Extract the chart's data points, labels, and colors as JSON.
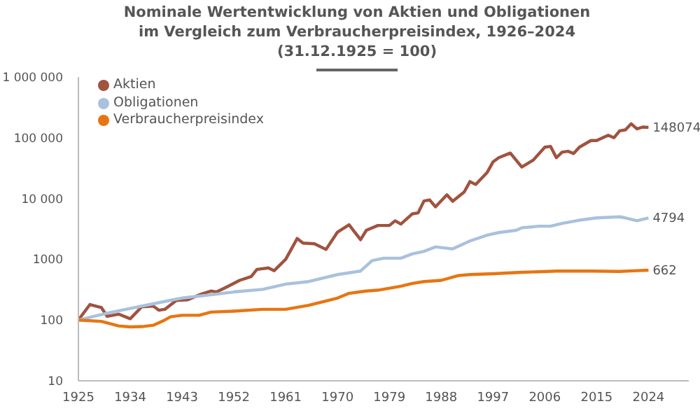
{
  "chart_data": {
    "type": "line",
    "title": "Nominale Wertentwicklung von Aktien und Obligationen im Vergleich zum Verbraucherpreisindex, 1926–2024 (31.12.1925 = 100)",
    "log": "y",
    "grid": false,
    "legend": "top left",
    "marker": "none",
    "line_style": "solid",
    "xlim": [
      1925,
      2031
    ],
    "xticks": [
      1925,
      1934,
      1943,
      1952,
      1961,
      1970,
      1979,
      1988,
      1997,
      2006,
      2015,
      2024
    ],
    "ylim": [
      10,
      1000000
    ],
    "yticks": [
      10,
      100,
      1000,
      {
        "value": 10000,
        "label": "10 000"
      },
      {
        "value": 100000,
        "label": "100 000"
      },
      {
        "value": 1000000,
        "label": "1 000 000"
      }
    ],
    "series": [
      {
        "name": "Aktien",
        "color": "#a0533f",
        "x": [
          1925,
          1927,
          1929,
          1930,
          1932,
          1934,
          1936,
          1938,
          1939,
          1940,
          1942,
          1944,
          1946,
          1948,
          1949,
          1951,
          1953,
          1955,
          1956,
          1958,
          1959,
          1961,
          1963,
          1964,
          1966,
          1968,
          1970,
          1972,
          1974,
          1975,
          1977,
          1979,
          1980,
          1981,
          1983,
          1984,
          1985,
          1986,
          1987,
          1989,
          1990,
          1992,
          1993,
          1994,
          1996,
          1997,
          1998,
          2000,
          2002,
          2004,
          2006,
          2007,
          2008,
          2009,
          2010,
          2011,
          2012,
          2014,
          2015,
          2017,
          2018,
          2019,
          2020,
          2021,
          2022,
          2023,
          2024
        ],
        "values": [
          100,
          180,
          160,
          115,
          125,
          105,
          165,
          170,
          145,
          150,
          210,
          215,
          260,
          300,
          290,
          360,
          450,
          520,
          680,
          720,
          650,
          1000,
          2200,
          1850,
          1800,
          1450,
          2800,
          3700,
          2100,
          3000,
          3600,
          3600,
          4300,
          3800,
          5600,
          5800,
          9100,
          9500,
          7300,
          11500,
          9000,
          12800,
          19000,
          17000,
          27000,
          40000,
          47000,
          56000,
          33000,
          43000,
          70000,
          72000,
          47000,
          58000,
          60000,
          55000,
          70000,
          90000,
          90000,
          110000,
          100000,
          130000,
          135000,
          170000,
          140000,
          150000,
          148074
        ],
        "value_labels": [
          null,
          null,
          null,
          null,
          null,
          null,
          null,
          null,
          null,
          null,
          null,
          null,
          null,
          null,
          null,
          null,
          null,
          null,
          null,
          null,
          null,
          null,
          null,
          null,
          null,
          null,
          null,
          null,
          null,
          null,
          null,
          null,
          null,
          null,
          null,
          null,
          null,
          null,
          null,
          null,
          null,
          null,
          null,
          null,
          null,
          null,
          null,
          null,
          null,
          null,
          null,
          null,
          null,
          null,
          null,
          null,
          null,
          null,
          null,
          null,
          null,
          null,
          null,
          null,
          null,
          null,
          "148074"
        ]
      },
      {
        "name": "Obligationen",
        "color": "#a9c1dd",
        "x": [
          1925,
          1930,
          1934,
          1938,
          1943,
          1948,
          1952,
          1957,
          1961,
          1965,
          1970,
          1974,
          1976,
          1978,
          1981,
          1983,
          1985,
          1987,
          1990,
          1993,
          1996,
          1998,
          2001,
          2002,
          2005,
          2007,
          2009,
          2012,
          2015,
          2019,
          2020,
          2022,
          2024
        ],
        "values": [
          100,
          130,
          155,
          185,
          230,
          260,
          290,
          320,
          390,
          430,
          560,
          640,
          950,
          1040,
          1040,
          1230,
          1350,
          1600,
          1480,
          2000,
          2500,
          2750,
          3000,
          3300,
          3500,
          3500,
          3900,
          4400,
          4800,
          5000,
          4800,
          4300,
          4794
        ],
        "value_labels": [
          null,
          null,
          null,
          null,
          null,
          null,
          null,
          null,
          null,
          null,
          null,
          null,
          null,
          null,
          null,
          null,
          null,
          null,
          null,
          null,
          null,
          null,
          null,
          null,
          null,
          null,
          null,
          null,
          null,
          null,
          null,
          null,
          "4794"
        ]
      },
      {
        "name": "Verbraucherpreisindex",
        "color": "#e87511",
        "x": [
          1925,
          1929,
          1932,
          1934,
          1936,
          1938,
          1940,
          1941,
          1943,
          1946,
          1948,
          1952,
          1957,
          1961,
          1965,
          1970,
          1972,
          1975,
          1977,
          1981,
          1983,
          1985,
          1988,
          1991,
          1993,
          1997,
          2002,
          2008,
          2014,
          2019,
          2022,
          2024
        ],
        "values": [
          100,
          95,
          80,
          77,
          78,
          82,
          100,
          113,
          120,
          120,
          135,
          140,
          150,
          150,
          175,
          230,
          275,
          300,
          310,
          360,
          400,
          430,
          450,
          540,
          560,
          580,
          610,
          640,
          640,
          630,
          650,
          662
        ],
        "value_labels": [
          null,
          null,
          null,
          null,
          null,
          null,
          null,
          null,
          null,
          null,
          null,
          null,
          null,
          null,
          null,
          null,
          null,
          null,
          null,
          null,
          null,
          null,
          null,
          null,
          null,
          null,
          null,
          null,
          null,
          null,
          null,
          "662"
        ]
      }
    ]
  }
}
